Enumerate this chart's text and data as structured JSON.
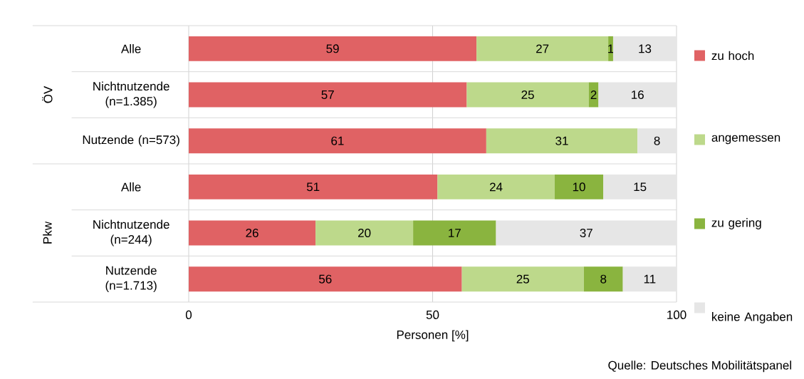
{
  "chart_data": {
    "type": "bar",
    "orientation": "horizontal",
    "stacked": true,
    "xlabel": "Personen [%]",
    "categories": [
      "Alle",
      "Nichtnutzende (n=1.385)",
      "Nutzende (n=573)",
      "Alle",
      "Nichtnutzende (n=244)",
      "Nutzende (n=1.713)"
    ],
    "series": [
      {
        "name": "zu hoch",
        "color": "#e06264",
        "values": [
          59,
          57,
          61,
          51,
          26,
          56
        ]
      },
      {
        "name": "angemessen",
        "color": "#bdd98b",
        "values": [
          27,
          25,
          31,
          24,
          20,
          25
        ]
      },
      {
        "name": "zu gering",
        "color": "#8ab43f",
        "values": [
          1,
          2,
          null,
          10,
          17,
          8
        ]
      },
      {
        "name": "keine Angaben",
        "color": "#e6e6e6",
        "values": [
          13,
          16,
          8,
          15,
          37,
          11
        ]
      }
    ],
    "xlim": [
      0,
      100
    ],
    "xticks": [
      0,
      50,
      100
    ],
    "grid": "x",
    "legend": "right",
    "data_labels": true,
    "annotations": [
      "ÖV",
      "Pkw",
      "Quelle: Deutsches Mobilitätspanel"
    ]
  }
}
